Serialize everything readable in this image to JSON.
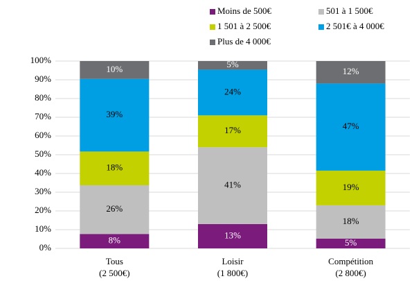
{
  "chart_data": {
    "type": "stacked_bar",
    "categories": [
      [
        "Tous",
        "(2 500€)"
      ],
      [
        "Loisir",
        "(1 800€)"
      ],
      [
        "Compétition",
        "(2 800€)"
      ]
    ],
    "series": [
      {
        "name": "Moins de 500€",
        "color": "#7b1c7d",
        "label_color": "#ffffff",
        "values": [
          7.7,
          13,
          5.2
        ],
        "value_labels": [
          "8%",
          "13%",
          "5%"
        ]
      },
      {
        "name": "501 à 1 500€",
        "color": "#bfbfbf",
        "label_color": "#000000",
        "values": [
          26,
          41,
          17.8
        ],
        "value_labels": [
          "26%",
          "41%",
          "18%"
        ]
      },
      {
        "name": "1 501 à 2 500€",
        "color": "#c3d100",
        "label_color": "#000000",
        "values": [
          18,
          17,
          18.5
        ],
        "value_labels": [
          "18%",
          "17%",
          "19%"
        ]
      },
      {
        "name": "2 501€ à 4 000€",
        "color": "#009fe3",
        "label_color": "#000000",
        "values": [
          38.8,
          24.4,
          46.5
        ],
        "value_labels": [
          "39%",
          "24%",
          "47%"
        ]
      },
      {
        "name": "Plus de 4 000€",
        "color": "#6d6e71",
        "label_color": "#ffffff",
        "values": [
          9.5,
          4.6,
          12
        ],
        "value_labels": [
          "10%",
          "5%",
          "12%"
        ]
      }
    ],
    "ylim": [
      0,
      100
    ],
    "yticks": [
      {
        "value": 0,
        "label": "0%"
      },
      {
        "value": 10,
        "label": "10%"
      },
      {
        "value": 20,
        "label": "20%"
      },
      {
        "value": 30,
        "label": "30%"
      },
      {
        "value": 40,
        "label": "40%"
      },
      {
        "value": 50,
        "label": "50%"
      },
      {
        "value": 60,
        "label": "60%"
      },
      {
        "value": 70,
        "label": "70%"
      },
      {
        "value": 80,
        "label": "80%"
      },
      {
        "value": 90,
        "label": "90%"
      },
      {
        "value": 100,
        "label": "100%"
      }
    ],
    "grid": true,
    "legend": "top-right"
  }
}
